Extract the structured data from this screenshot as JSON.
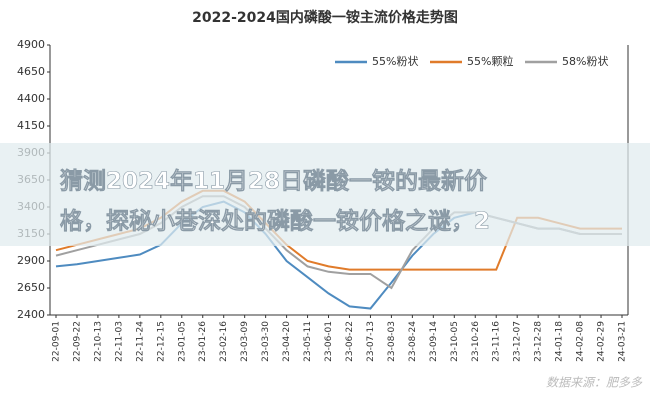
{
  "chart_data": {
    "type": "line",
    "title": "2022-2024国内磷酸一铵主流价格走势图",
    "categories": [
      "22-09-01",
      "22-09-22",
      "22-10-13",
      "22-11-03",
      "22-11-24",
      "22-12-15",
      "23-01-05",
      "23-01-26",
      "23-02-16",
      "23-03-09",
      "23-03-30",
      "23-04-20",
      "23-05-11",
      "23-06-01",
      "23-06-22",
      "23-07-13",
      "23-08-03",
      "23-08-24",
      "23-09-14",
      "23-10-05",
      "23-10-26",
      "23-11-16",
      "23-12-07",
      "23-12-28",
      "24-01-18",
      "24-02-08",
      "24-02-29",
      "24-03-21"
    ],
    "series": [
      {
        "name": "55%粉状",
        "color": "#4e8bc0",
        "values": [
          2850,
          2870,
          2900,
          2930,
          2960,
          3050,
          3250,
          3400,
          3450,
          3350,
          3150,
          2900,
          2750,
          2600,
          2480,
          2460,
          2700,
          2950,
          3150,
          3300,
          3350,
          3300,
          3250,
          3200,
          3200,
          3150,
          3150,
          3150
        ]
      },
      {
        "name": "55%颗粒",
        "color": "#e07b2a",
        "values": [
          3000,
          3050,
          3100,
          3150,
          3200,
          3300,
          3450,
          3550,
          3550,
          3450,
          3250,
          3050,
          2900,
          2850,
          2820,
          2820,
          2820,
          2820,
          2820,
          2820,
          2820,
          2820,
          3300,
          3300,
          3250,
          3200,
          3200,
          3200
        ]
      },
      {
        "name": "58%粉状",
        "color": "#a0a0a0",
        "values": [
          2950,
          3000,
          3050,
          3100,
          3150,
          3250,
          3400,
          3500,
          3500,
          3400,
          3200,
          3000,
          2850,
          2800,
          2780,
          2780,
          2650,
          3000,
          3200,
          3350,
          3350,
          3300,
          3250,
          3200,
          3200,
          3150,
          3150,
          3150
        ]
      }
    ],
    "ylim": [
      2400,
      4900
    ],
    "yticks": [
      2400,
      2650,
      2900,
      3150,
      3400,
      3650,
      3900,
      4150,
      4400,
      4650,
      4900
    ],
    "grid": false
  },
  "overlay": {
    "headline_lines": [
      "猜测2024年11月28日磷酸一铵的最新价",
      "格，探秘小巷深处的磷酸一铵价格之谜，2"
    ]
  },
  "source": "数据来源：肥多多"
}
